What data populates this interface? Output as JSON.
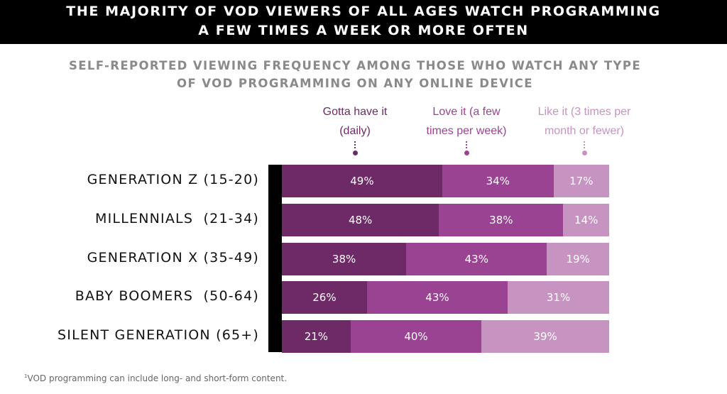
{
  "header": {
    "title_line1": "THE MAJORITY OF VOD VIEWERS OF ALL AGES WATCH PROGRAMMING",
    "title_line2": "A FEW TIMES A WEEK OR MORE OFTEN"
  },
  "subtitle_line1": "SELF-REPORTED VIEWING FREQUENCY AMONG THOSE WHO WATCH ANY TYPE",
  "subtitle_line2": "OF VOD PROGRAMMING ON ANY ONLINE DEVICE",
  "footnote": {
    "marker": "1",
    "text": "VOD programming can include long- and short-form content."
  },
  "chart_data": {
    "type": "bar",
    "orientation": "horizontal",
    "stacked": true,
    "categories": [
      "GENERATION Z (15-20)",
      "MILLENNIALS  (21-34)",
      "GENERATION X (35-49)",
      "BABY BOOMERS  (50-64)",
      "SILENT GENERATION (65+)"
    ],
    "series": [
      {
        "name_line1": "Gotta have it",
        "name_line2": "(daily)",
        "color": "#6e2a66",
        "values": [
          49,
          48,
          38,
          26,
          21
        ]
      },
      {
        "name_line1": "Love it (a few",
        "name_line2": "times per week)",
        "color": "#9a4392",
        "values": [
          34,
          38,
          43,
          43,
          40
        ]
      },
      {
        "name_line1": "Like it (3 times per",
        "name_line2": "month or fewer)",
        "color": "#c793c1",
        "values": [
          17,
          14,
          19,
          31,
          39
        ]
      }
    ],
    "value_suffix": "%",
    "legend_placement": "top",
    "legend_text_colors": [
      "#6e2a66",
      "#9a4392",
      "#c793c1"
    ]
  }
}
